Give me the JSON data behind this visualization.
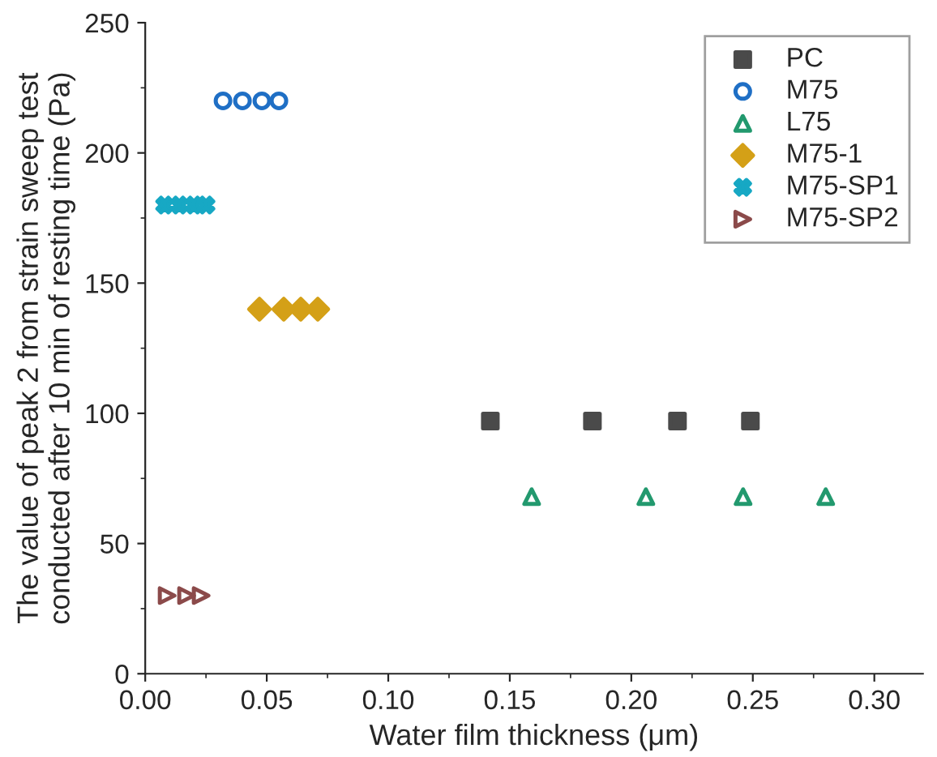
{
  "chart_data": {
    "type": "scatter",
    "xlabel": "Water film thickness (μm)",
    "ylabel": "The value of peak 2 from strain sweep test\nconducted after 10 min of resting time (Pa)",
    "xlim": [
      0,
      0.32
    ],
    "ylim": [
      0,
      250
    ],
    "xticks": [
      {
        "value": 0,
        "label": "0.00"
      },
      {
        "value": 0.05,
        "label": "0.05"
      },
      {
        "value": 0.1,
        "label": "0.10"
      },
      {
        "value": 0.15,
        "label": "0.15"
      },
      {
        "value": 0.2,
        "label": "0.20"
      },
      {
        "value": 0.25,
        "label": "0.25"
      },
      {
        "value": 0.3,
        "label": "0.30"
      }
    ],
    "yticks": [
      0,
      50,
      100,
      150,
      200,
      250
    ],
    "grid": false,
    "legend": "top right",
    "series": [
      {
        "name": "PC",
        "color": "#4a4a4a",
        "marker": "square",
        "x": [
          0.142,
          0.184,
          0.219,
          0.249
        ],
        "values": [
          97,
          97,
          97,
          97
        ]
      },
      {
        "name": "M75",
        "color": "#1f6fc5",
        "marker": "circle",
        "x": [
          0.032,
          0.04,
          0.048,
          0.055
        ],
        "values": [
          220,
          220,
          220,
          220
        ]
      },
      {
        "name": "L75",
        "color": "#22996e",
        "marker": "triangle",
        "x": [
          0.159,
          0.206,
          0.246,
          0.28
        ],
        "values": [
          68,
          68,
          68,
          68
        ]
      },
      {
        "name": "M75-1",
        "color": "#d4a017",
        "marker": "diamond",
        "x": [
          0.047,
          0.057,
          0.064,
          0.071
        ],
        "values": [
          140,
          140,
          140,
          140
        ]
      },
      {
        "name": "M75-SP1",
        "color": "#17a8c4",
        "marker": "cross",
        "x": [
          0.008,
          0.014,
          0.02,
          0.025
        ],
        "values": [
          180,
          180,
          180,
          180
        ]
      },
      {
        "name": "M75-SP2",
        "color": "#8b4a4a",
        "marker": "triangle_right",
        "x": [
          0.009,
          0.017,
          0.023
        ],
        "values": [
          30,
          30,
          30
        ]
      }
    ]
  }
}
